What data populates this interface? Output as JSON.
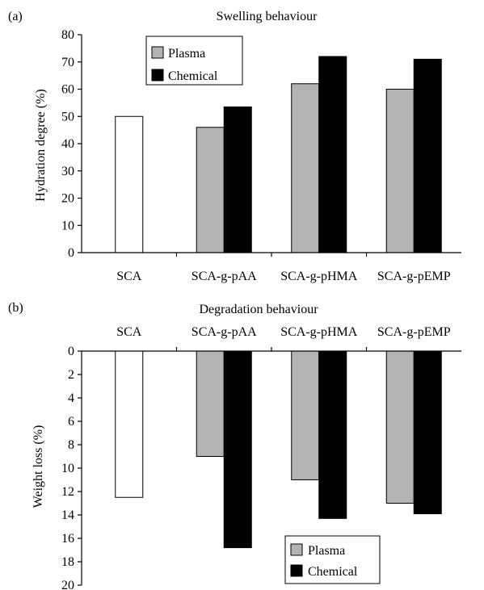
{
  "chart_data": [
    {
      "panel_label": "(a)",
      "type": "bar",
      "title": "Swelling behaviour",
      "xlabel": "",
      "ylabel": "Hydration degree (%)",
      "ylim": [
        0,
        80
      ],
      "yticks": [
        "0",
        "10",
        "20",
        "30",
        "40",
        "50",
        "60",
        "70",
        "80"
      ],
      "categories": [
        "SCA",
        "SCA-g-pAA",
        "SCA-g-pHMA",
        "SCA-g-pEMP"
      ],
      "series": [
        {
          "name": "Plasma",
          "color": "#b3b3b3",
          "values": [
            null,
            46,
            62,
            60
          ]
        },
        {
          "name": "Chemical",
          "color": "#000000",
          "values": [
            null,
            53.5,
            72,
            71
          ]
        }
      ],
      "reference": {
        "category": "SCA",
        "value": 50,
        "color": "#ffffff"
      },
      "legend_position": "top-left",
      "grid": false
    },
    {
      "panel_label": "(b)",
      "type": "bar",
      "title": "Degradation behaviour",
      "xlabel": "",
      "ylabel": "Weight loss (%)",
      "ylim": [
        0,
        20
      ],
      "y_inverted": true,
      "x_axis_position": "top",
      "yticks": [
        "0",
        "2",
        "4",
        "6",
        "8",
        "10",
        "12",
        "14",
        "16",
        "18",
        "20"
      ],
      "categories": [
        "SCA",
        "SCA-g-pAA",
        "SCA-g-pHMA",
        "SCA-g-pEMP"
      ],
      "series": [
        {
          "name": "Plasma",
          "color": "#b3b3b3",
          "values": [
            null,
            9,
            11,
            13
          ]
        },
        {
          "name": "Chemical",
          "color": "#000000",
          "values": [
            null,
            16.8,
            14.3,
            13.9
          ]
        }
      ],
      "reference": {
        "category": "SCA",
        "value": 12.5,
        "color": "#ffffff"
      },
      "legend_position": "bottom-right",
      "grid": false
    }
  ]
}
